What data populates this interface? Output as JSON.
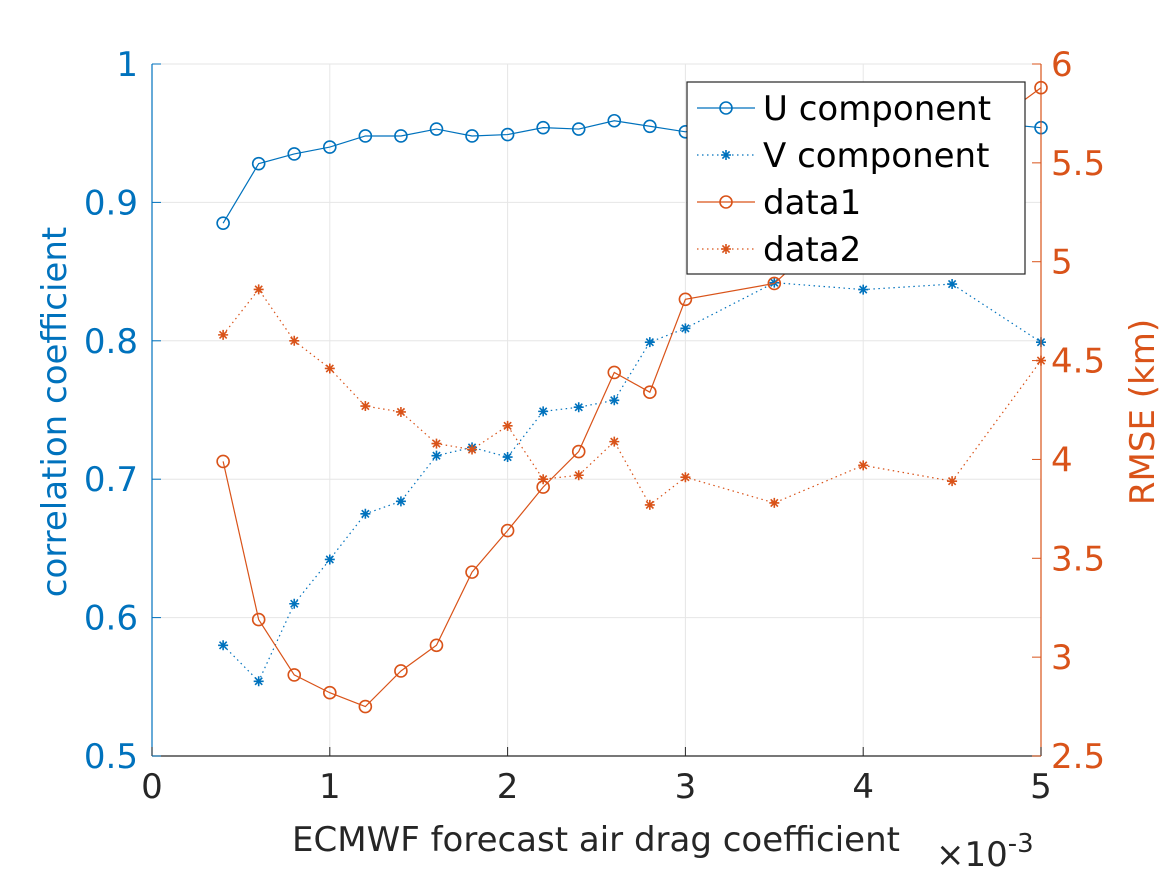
{
  "chart_data": {
    "type": "line",
    "title": "",
    "xlabel": "ECMWF forecast air drag coefficient",
    "x_multiplier": "×10-3",
    "x_multiplier_parts": {
      "base": "×10",
      "exp": "-3"
    },
    "ylabel_left": "correlation coefficient",
    "ylabel_right": "RMSE (km)",
    "xlim": [
      0,
      5
    ],
    "ylim_left": [
      0.5,
      1
    ],
    "ylim_right": [
      2.5,
      6
    ],
    "xticks": [
      "0",
      "1",
      "2",
      "3",
      "4",
      "5"
    ],
    "yticks_left": [
      "0.5",
      "0.6",
      "0.7",
      "0.8",
      "0.9",
      "1"
    ],
    "yticks_right": [
      "2.5",
      "3",
      "3.5",
      "4",
      "4.5",
      "5",
      "5.5",
      "6"
    ],
    "grid": true,
    "legend_position": "top-right",
    "x": [
      0.4,
      0.6,
      0.8,
      1.0,
      1.2,
      1.4,
      1.6,
      1.8,
      2.0,
      2.2,
      2.4,
      2.6,
      2.8,
      3.0,
      3.5,
      4.0,
      4.5,
      5.0
    ],
    "series": [
      {
        "name": "U component",
        "axis": "left",
        "marker": "circle",
        "line": "solid",
        "color": "#0072BD",
        "values": [
          0.885,
          0.928,
          0.935,
          0.94,
          0.948,
          0.948,
          0.953,
          0.948,
          0.949,
          0.954,
          0.953,
          0.959,
          0.955,
          0.951,
          0.962,
          0.958,
          0.96,
          0.954
        ]
      },
      {
        "name": "V component",
        "axis": "left",
        "marker": "star",
        "line": "dotted",
        "color": "#0072BD",
        "values": [
          0.58,
          0.554,
          0.61,
          0.642,
          0.675,
          0.684,
          0.717,
          0.723,
          0.716,
          0.749,
          0.752,
          0.757,
          0.799,
          0.809,
          0.842,
          0.837,
          0.841,
          0.799
        ]
      },
      {
        "name": "data1",
        "axis": "right",
        "marker": "circle",
        "line": "solid",
        "color": "#D95319",
        "values": [
          3.99,
          3.19,
          2.91,
          2.82,
          2.75,
          2.93,
          3.06,
          3.43,
          3.64,
          3.86,
          4.04,
          4.44,
          4.34,
          4.81,
          4.89,
          5.3,
          5.55,
          5.88
        ]
      },
      {
        "name": "data2",
        "axis": "right",
        "marker": "star",
        "line": "dotted",
        "color": "#D95319",
        "values": [
          4.63,
          4.86,
          4.6,
          4.46,
          4.27,
          4.24,
          4.08,
          4.05,
          4.17,
          3.9,
          3.92,
          4.09,
          3.77,
          3.91,
          3.78,
          3.97,
          3.89,
          4.5
        ]
      }
    ]
  }
}
